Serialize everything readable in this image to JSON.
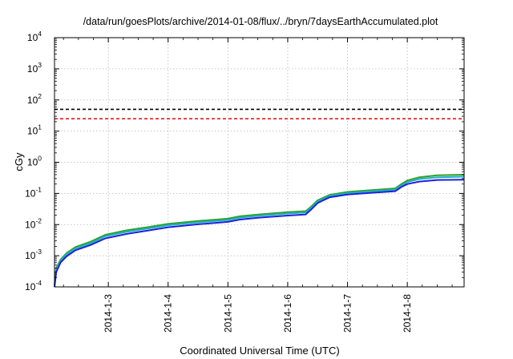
{
  "chart_data": {
    "type": "line",
    "title": "/data/run/goesPlots/archive/2014-01-08/flux/../bryn/7daysEarthAccumulated.plot",
    "xlabel": "Coordinated Universal Time (UTC)",
    "ylabel": "cGy",
    "yscale": "log",
    "ylim": [
      0.0001,
      10000
    ],
    "xlim": [
      2.1,
      8.95
    ],
    "x_unit": "day of January 2014",
    "xtick_labels": [
      {
        "x": 3,
        "label": "2014-1-3"
      },
      {
        "x": 4,
        "label": "2014-1-4"
      },
      {
        "x": 5,
        "label": "2014-1-5"
      },
      {
        "x": 6,
        "label": "2014-1-6"
      },
      {
        "x": 7,
        "label": "2014-1-7"
      },
      {
        "x": 8,
        "label": "2014-1-8"
      }
    ],
    "ytick_labels": [
      {
        "base": "10",
        "exp": "-4",
        "value": 0.0001
      },
      {
        "base": "10",
        "exp": "-3",
        "value": 0.001
      },
      {
        "base": "10",
        "exp": "-2",
        "value": 0.01
      },
      {
        "base": "10",
        "exp": "-1",
        "value": 0.1
      },
      {
        "base": "10",
        "exp": "0",
        "value": 1
      },
      {
        "base": "10",
        "exp": "1",
        "value": 10
      },
      {
        "base": "10",
        "exp": "2",
        "value": 100
      },
      {
        "base": "10",
        "exp": "3",
        "value": 1000
      },
      {
        "base": "10",
        "exp": "4",
        "value": 10000
      }
    ],
    "grid": true,
    "threshold_lines": [
      {
        "value": 50,
        "color": "#000000",
        "style": "dashed"
      },
      {
        "value": 25,
        "color": "#e41a1c",
        "style": "dashed"
      }
    ],
    "series": [
      {
        "color": "#2ca02c",
        "x": [
          2.1,
          2.13,
          2.2,
          2.3,
          2.45,
          2.7,
          2.95,
          3.3,
          3.7,
          4.0,
          4.5,
          5.0,
          5.2,
          5.5,
          6.0,
          6.3,
          6.38,
          6.5,
          6.7,
          7.0,
          7.4,
          7.8,
          7.9,
          8.0,
          8.2,
          8.5,
          8.95
        ],
        "y": [
          0.00012,
          0.0004,
          0.00075,
          0.0012,
          0.0019,
          0.0028,
          0.0047,
          0.0065,
          0.0085,
          0.0105,
          0.013,
          0.0155,
          0.0185,
          0.021,
          0.025,
          0.027,
          0.036,
          0.06,
          0.09,
          0.112,
          0.128,
          0.145,
          0.2,
          0.26,
          0.33,
          0.38,
          0.4
        ]
      },
      {
        "color": "#20b0c0",
        "x": [
          2.1,
          2.13,
          2.2,
          2.3,
          2.45,
          2.7,
          2.95,
          3.3,
          3.7,
          4.0,
          4.5,
          5.0,
          5.2,
          5.5,
          6.0,
          6.3,
          6.38,
          6.5,
          6.7,
          7.0,
          7.4,
          7.8,
          7.9,
          8.0,
          8.2,
          8.5,
          8.95
        ],
        "y": [
          0.00011,
          0.00036,
          0.00068,
          0.0011,
          0.0017,
          0.0025,
          0.0042,
          0.0058,
          0.0077,
          0.0095,
          0.0118,
          0.014,
          0.0167,
          0.019,
          0.0226,
          0.0245,
          0.033,
          0.055,
          0.083,
          0.102,
          0.117,
          0.132,
          0.18,
          0.23,
          0.29,
          0.33,
          0.345
        ]
      },
      {
        "color": "#1f1fe0",
        "x": [
          2.1,
          2.13,
          2.2,
          2.3,
          2.45,
          2.7,
          2.95,
          3.3,
          3.7,
          4.0,
          4.5,
          5.0,
          5.2,
          5.5,
          6.0,
          6.3,
          6.38,
          6.5,
          6.7,
          7.0,
          7.4,
          7.8,
          7.9,
          8.0,
          8.2,
          8.5,
          8.95
        ],
        "y": [
          0.0001,
          0.0003,
          0.0006,
          0.00095,
          0.0015,
          0.0022,
          0.0036,
          0.005,
          0.0066,
          0.0082,
          0.0102,
          0.0122,
          0.0145,
          0.0165,
          0.0195,
          0.0212,
          0.029,
          0.049,
          0.075,
          0.092,
          0.105,
          0.118,
          0.16,
          0.2,
          0.24,
          0.27,
          0.275
        ]
      }
    ]
  }
}
